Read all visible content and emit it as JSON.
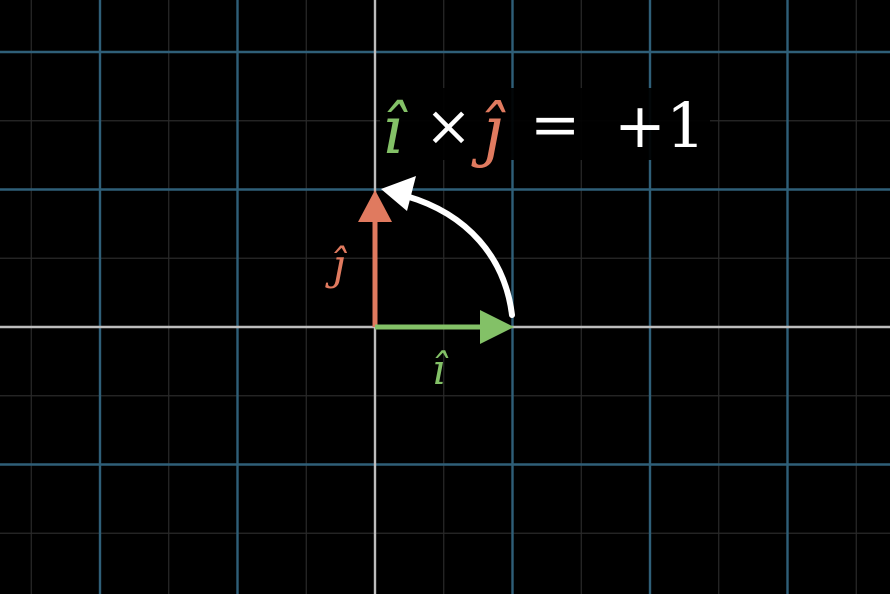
{
  "colors": {
    "background": "#000000",
    "major_grid": "#2f5f78",
    "minor_grid": "#2a2a2a",
    "axis": "#bdbdbd",
    "i_hat": "#83c167",
    "j_hat": "#e07a5f",
    "rotation_arrow": "#ffffff",
    "equation_text": "#ffffff"
  },
  "equation": {
    "i_hat": "î",
    "times": "×",
    "j_hat": "ĵ",
    "equals": "=",
    "result": "+1"
  },
  "labels": {
    "i_hat": "î",
    "j_hat": "ĵ"
  },
  "vectors": {
    "i_hat": [
      1,
      0
    ],
    "j_hat": [
      0,
      1
    ]
  },
  "icons": {
    "rotation": "counterclockwise-arc-arrow-icon"
  }
}
